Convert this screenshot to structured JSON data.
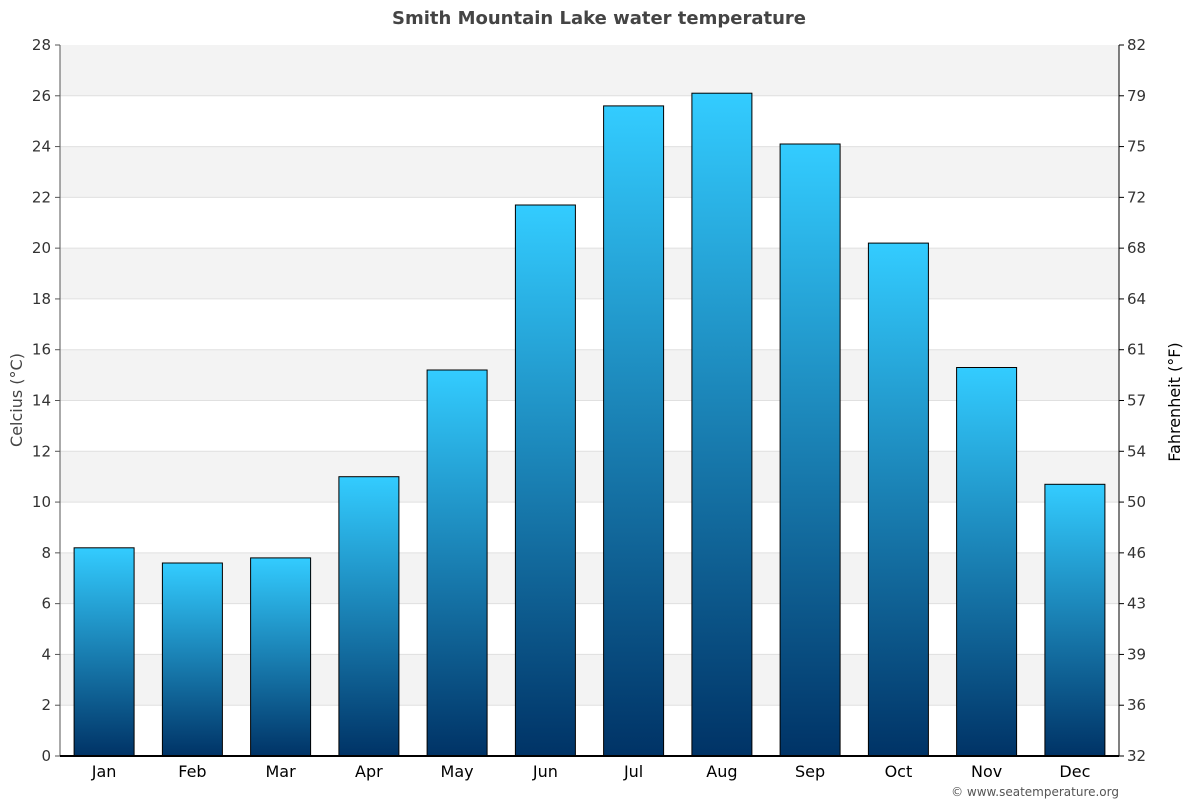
{
  "chart_data": {
    "type": "bar",
    "title": "Smith Mountain Lake water temperature",
    "categories": [
      "Jan",
      "Feb",
      "Mar",
      "Apr",
      "May",
      "Jun",
      "Jul",
      "Aug",
      "Sep",
      "Oct",
      "Nov",
      "Dec"
    ],
    "values": [
      8.2,
      7.6,
      7.8,
      11.0,
      15.2,
      21.7,
      25.6,
      26.1,
      24.1,
      20.2,
      15.3,
      10.7
    ],
    "ylabel": "Celcius (°C)",
    "ylabel_right": "Fahrenheit (°F)",
    "ylim": [
      0,
      28
    ],
    "yticks": [
      "0",
      "2",
      "4",
      "6",
      "8",
      "10",
      "12",
      "14",
      "16",
      "18",
      "20",
      "22",
      "24",
      "26",
      "28"
    ],
    "yticks_right": [
      "32",
      "36",
      "39",
      "43",
      "46",
      "50",
      "54",
      "57",
      "61",
      "64",
      "68",
      "72",
      "75",
      "79",
      "82"
    ],
    "grid": "horizontal alternating bands",
    "colors": {
      "bar_top": "#33CCFF",
      "bar_bottom": "#003366",
      "bar_outline": "#000000",
      "band": "#F3F3F3",
      "gridline": "#E0E0E0"
    }
  },
  "credit": "© www.seatemperature.org"
}
